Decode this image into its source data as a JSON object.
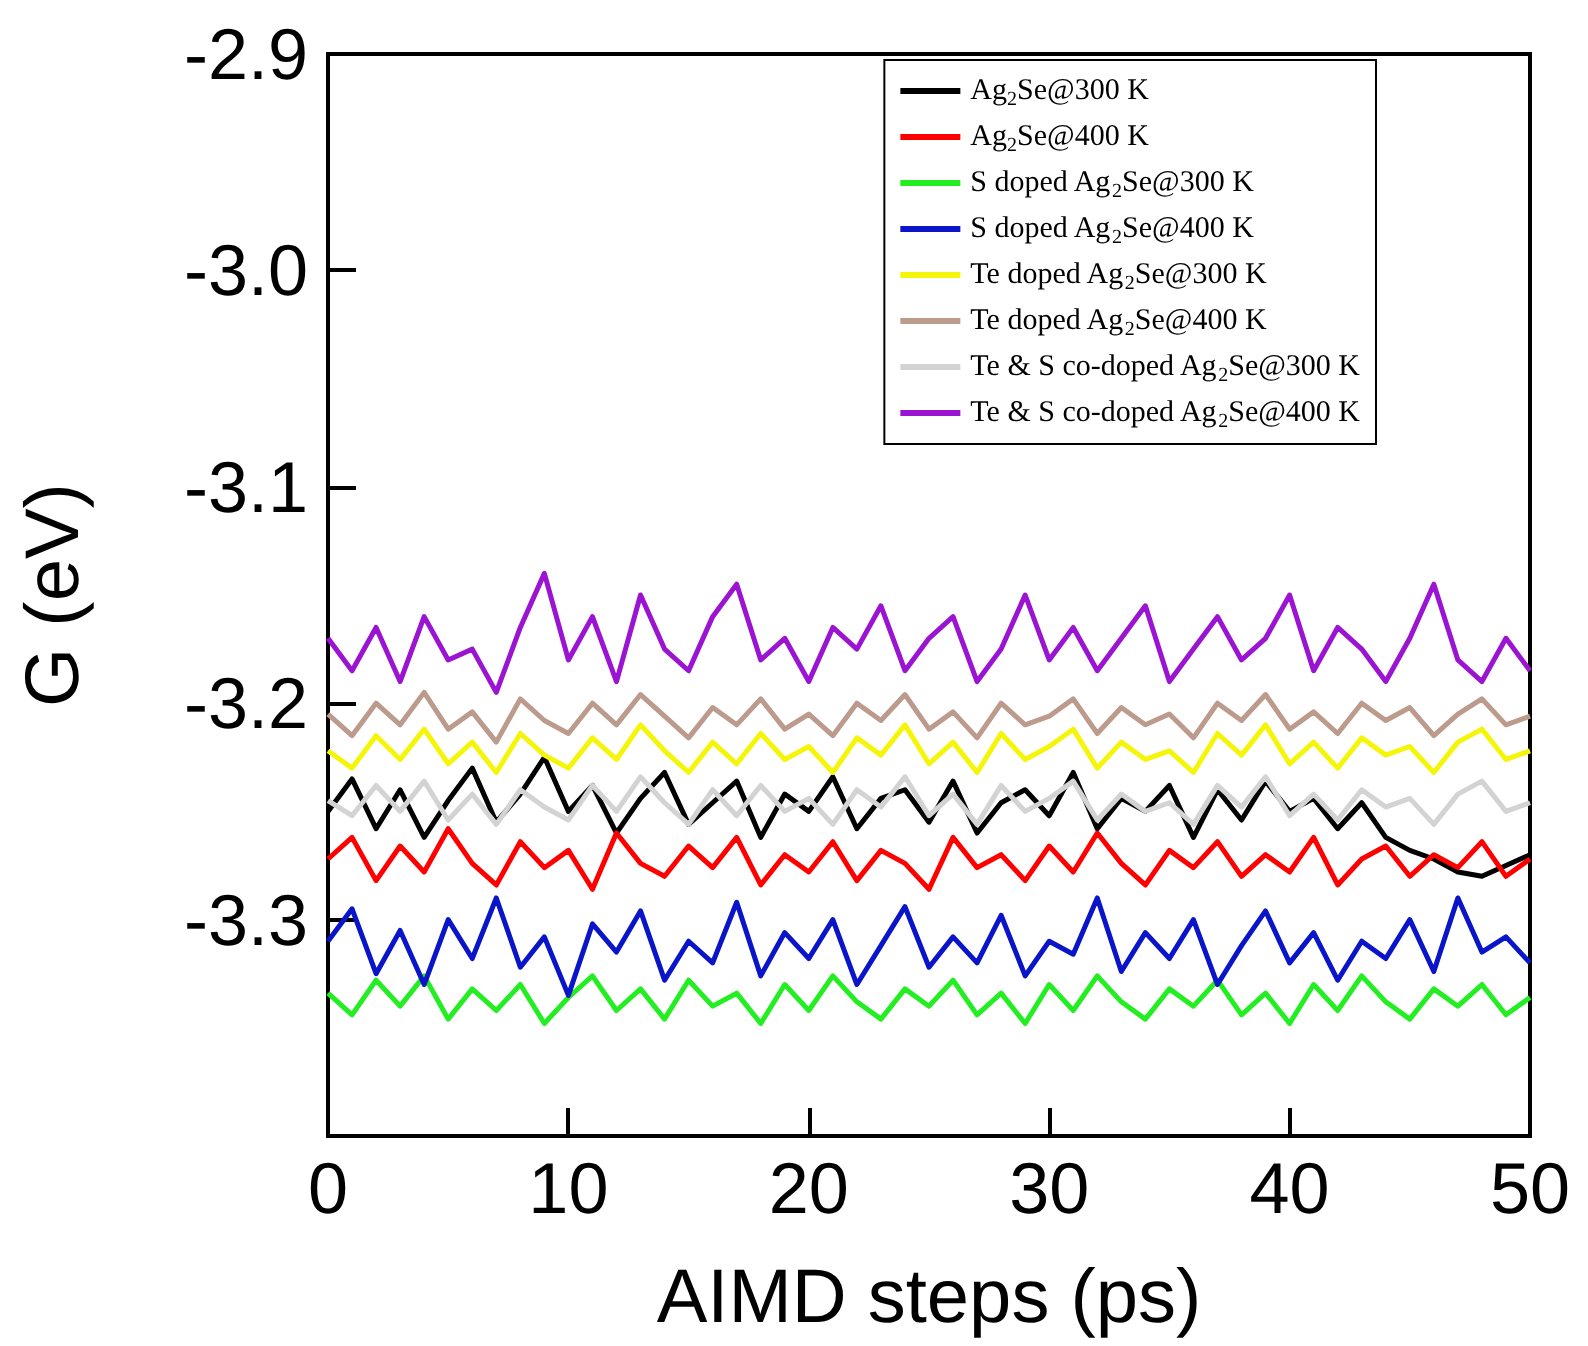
{
  "chart_data": {
    "type": "line",
    "xlabel": "AIMD steps (ps)",
    "ylabel": "G (eV)",
    "x": [
      0,
      1,
      2,
      3,
      4,
      5,
      6,
      7,
      8,
      9,
      10,
      11,
      12,
      13,
      14,
      15,
      16,
      17,
      18,
      19,
      20,
      21,
      22,
      23,
      24,
      25,
      26,
      27,
      28,
      29,
      30,
      31,
      32,
      33,
      34,
      35,
      36,
      37,
      38,
      39,
      40,
      41,
      42,
      43,
      44,
      45,
      46,
      47,
      48,
      49,
      50
    ],
    "xlim": [
      0,
      50
    ],
    "xticks": [
      0,
      10,
      20,
      30,
      40,
      50
    ],
    "ylim": [
      -3.4,
      -2.9
    ],
    "yticks": [
      -2.9,
      {
        "value": -3.0,
        "label": "-3.0"
      },
      -3.1,
      -3.2,
      -3.3
    ],
    "grid": false,
    "legend": "top right",
    "marker": "none",
    "line_style": "solid",
    "series": [
      {
        "name": "Ag$_{2}$Se@300 K",
        "color": "#000000",
        "values": [
          -3.25,
          -3.235,
          -3.258,
          -3.24,
          -3.262,
          -3.245,
          -3.23,
          -3.255,
          -3.242,
          -3.225,
          -3.25,
          -3.238,
          -3.26,
          -3.244,
          -3.232,
          -3.256,
          -3.246,
          -3.236,
          -3.262,
          -3.242,
          -3.25,
          -3.234,
          -3.258,
          -3.244,
          -3.24,
          -3.255,
          -3.236,
          -3.26,
          -3.246,
          -3.24,
          -3.252,
          -3.232,
          -3.258,
          -3.244,
          -3.25,
          -3.238,
          -3.262,
          -3.24,
          -3.254,
          -3.236,
          -3.25,
          -3.244,
          -3.258,
          -3.246,
          -3.262,
          -3.268,
          -3.272,
          -3.278,
          -3.28,
          -3.275,
          -3.27
        ]
      },
      {
        "name": "Ag$_{2}$Se@400 K",
        "color": "#ff0000",
        "values": [
          -3.272,
          -3.262,
          -3.282,
          -3.266,
          -3.278,
          -3.258,
          -3.274,
          -3.284,
          -3.264,
          -3.276,
          -3.268,
          -3.286,
          -3.26,
          -3.274,
          -3.28,
          -3.266,
          -3.276,
          -3.262,
          -3.284,
          -3.27,
          -3.278,
          -3.264,
          -3.282,
          -3.268,
          -3.274,
          -3.286,
          -3.262,
          -3.276,
          -3.27,
          -3.282,
          -3.266,
          -3.278,
          -3.26,
          -3.274,
          -3.284,
          -3.268,
          -3.276,
          -3.264,
          -3.28,
          -3.27,
          -3.278,
          -3.262,
          -3.284,
          -3.272,
          -3.266,
          -3.28,
          -3.27,
          -3.276,
          -3.264,
          -3.28,
          -3.272
        ]
      },
      {
        "name": "S doped Ag$_{2}$Se@300 K",
        "color": "#22ee22",
        "values": [
          -3.334,
          -3.344,
          -3.328,
          -3.34,
          -3.326,
          -3.346,
          -3.332,
          -3.342,
          -3.33,
          -3.348,
          -3.336,
          -3.326,
          -3.342,
          -3.332,
          -3.346,
          -3.328,
          -3.34,
          -3.334,
          -3.348,
          -3.33,
          -3.342,
          -3.326,
          -3.338,
          -3.346,
          -3.332,
          -3.34,
          -3.328,
          -3.344,
          -3.334,
          -3.348,
          -3.33,
          -3.342,
          -3.326,
          -3.338,
          -3.346,
          -3.332,
          -3.34,
          -3.328,
          -3.344,
          -3.334,
          -3.348,
          -3.33,
          -3.342,
          -3.326,
          -3.338,
          -3.346,
          -3.332,
          -3.34,
          -3.33,
          -3.344,
          -3.336
        ]
      },
      {
        "name": "S doped Ag$_{2}$Se@400 K",
        "color": "#0a14c8",
        "values": [
          -3.31,
          -3.295,
          -3.325,
          -3.305,
          -3.33,
          -3.3,
          -3.318,
          -3.29,
          -3.322,
          -3.308,
          -3.335,
          -3.302,
          -3.315,
          -3.296,
          -3.328,
          -3.31,
          -3.32,
          -3.292,
          -3.326,
          -3.306,
          -3.318,
          -3.3,
          -3.33,
          -3.312,
          -3.294,
          -3.322,
          -3.308,
          -3.32,
          -3.298,
          -3.326,
          -3.31,
          -3.316,
          -3.29,
          -3.324,
          -3.306,
          -3.318,
          -3.3,
          -3.33,
          -3.312,
          -3.296,
          -3.32,
          -3.306,
          -3.328,
          -3.31,
          -3.318,
          -3.3,
          -3.324,
          -3.29,
          -3.315,
          -3.308,
          -3.32
        ]
      },
      {
        "name": "Te doped Ag$_{2}$Se@300 K",
        "color": "#f5f50a",
        "values": [
          -3.222,
          -3.23,
          -3.215,
          -3.226,
          -3.212,
          -3.228,
          -3.218,
          -3.232,
          -3.214,
          -3.224,
          -3.23,
          -3.216,
          -3.226,
          -3.21,
          -3.222,
          -3.232,
          -3.218,
          -3.228,
          -3.214,
          -3.226,
          -3.22,
          -3.232,
          -3.216,
          -3.224,
          -3.21,
          -3.228,
          -3.218,
          -3.232,
          -3.214,
          -3.226,
          -3.22,
          -3.212,
          -3.23,
          -3.218,
          -3.226,
          -3.222,
          -3.232,
          -3.214,
          -3.224,
          -3.21,
          -3.228,
          -3.218,
          -3.23,
          -3.216,
          -3.224,
          -3.22,
          -3.232,
          -3.218,
          -3.212,
          -3.226,
          -3.222
        ]
      },
      {
        "name": "Te doped Ag$_{2}$Se@400 K",
        "color": "#bc9a8c",
        "values": [
          -3.205,
          -3.215,
          -3.2,
          -3.21,
          -3.195,
          -3.212,
          -3.204,
          -3.218,
          -3.198,
          -3.208,
          -3.214,
          -3.2,
          -3.21,
          -3.196,
          -3.206,
          -3.216,
          -3.202,
          -3.21,
          -3.198,
          -3.212,
          -3.205,
          -3.215,
          -3.2,
          -3.208,
          -3.196,
          -3.212,
          -3.204,
          -3.216,
          -3.2,
          -3.21,
          -3.206,
          -3.198,
          -3.214,
          -3.202,
          -3.21,
          -3.205,
          -3.216,
          -3.2,
          -3.208,
          -3.196,
          -3.212,
          -3.204,
          -3.214,
          -3.2,
          -3.208,
          -3.202,
          -3.215,
          -3.205,
          -3.198,
          -3.21,
          -3.206
        ]
      },
      {
        "name": "Te & S co-doped Ag$_{2}$Se@300 K",
        "color": "#d3d3d3",
        "values": [
          -3.245,
          -3.252,
          -3.238,
          -3.25,
          -3.236,
          -3.254,
          -3.242,
          -3.256,
          -3.24,
          -3.248,
          -3.254,
          -3.238,
          -3.25,
          -3.234,
          -3.246,
          -3.256,
          -3.24,
          -3.252,
          -3.238,
          -3.25,
          -3.244,
          -3.256,
          -3.24,
          -3.248,
          -3.234,
          -3.252,
          -3.242,
          -3.256,
          -3.238,
          -3.25,
          -3.244,
          -3.236,
          -3.254,
          -3.242,
          -3.25,
          -3.246,
          -3.256,
          -3.238,
          -3.248,
          -3.234,
          -3.252,
          -3.242,
          -3.254,
          -3.24,
          -3.248,
          -3.244,
          -3.256,
          -3.242,
          -3.236,
          -3.25,
          -3.246
        ]
      },
      {
        "name": "Te & S co-doped Ag$_{2}$Se@400 K",
        "color": "#9a14d2",
        "values": [
          -3.17,
          -3.185,
          -3.165,
          -3.19,
          -3.16,
          -3.18,
          -3.175,
          -3.195,
          -3.165,
          -3.14,
          -3.18,
          -3.16,
          -3.19,
          -3.15,
          -3.175,
          -3.185,
          -3.16,
          -3.145,
          -3.18,
          -3.17,
          -3.19,
          -3.165,
          -3.175,
          -3.155,
          -3.185,
          -3.17,
          -3.16,
          -3.19,
          -3.175,
          -3.15,
          -3.18,
          -3.165,
          -3.185,
          -3.17,
          -3.155,
          -3.19,
          -3.175,
          -3.16,
          -3.18,
          -3.17,
          -3.15,
          -3.185,
          -3.165,
          -3.175,
          -3.19,
          -3.17,
          -3.145,
          -3.18,
          -3.19,
          -3.17,
          -3.185
        ]
      }
    ]
  }
}
